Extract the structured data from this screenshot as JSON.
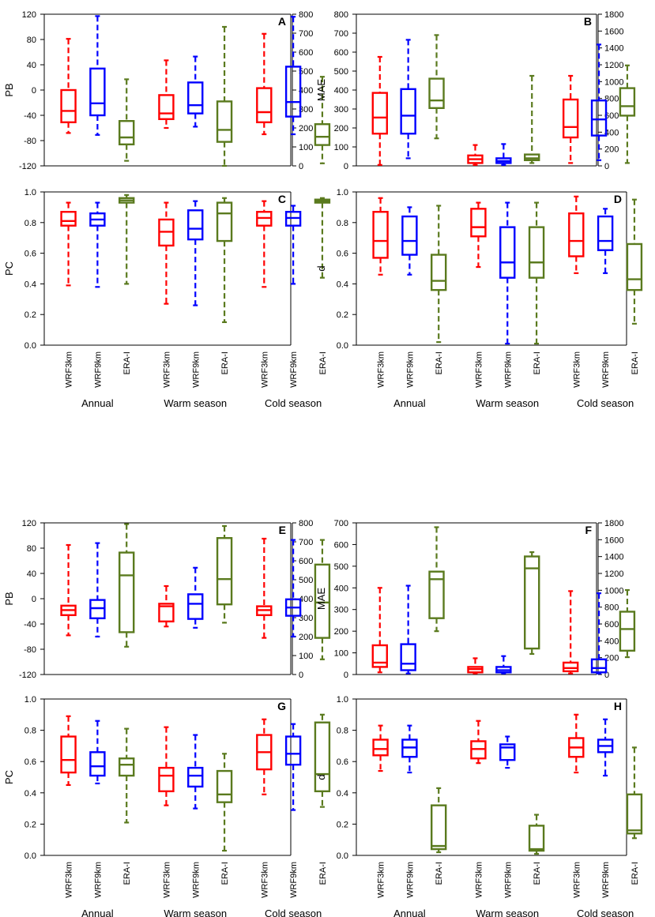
{
  "colors": {
    "WRF3km": "#ff0000",
    "WRF9km": "#0000ff",
    "ERA-I": "#5a7a1e"
  },
  "chart_data": [
    {
      "id": "A",
      "type": "box",
      "ylabel": "PB",
      "ylim": [
        -120,
        120
      ],
      "yticks": [
        "120",
        "80",
        "40",
        "0",
        "-40",
        "-80",
        "-120"
      ],
      "right_ylim": [
        0,
        800
      ],
      "right_yticks": [
        "800",
        "700",
        "600",
        "500",
        "400",
        "300",
        "200",
        "100",
        "0"
      ],
      "groups": [
        {
          "label": "Annual",
          "boxes": [
            {
              "name": "WRF3km",
              "min": -68,
              "q1": -51,
              "median": -33,
              "q3": 0,
              "max": 81
            },
            {
              "name": "WRF9km",
              "min": -71,
              "q1": -40,
              "median": -21,
              "q3": 34,
              "max": 117
            },
            {
              "name": "ERA-I",
              "min": -112,
              "q1": -86,
              "median": -75,
              "q3": -49,
              "max": 17
            }
          ]
        },
        {
          "label": "Warm season",
          "boxes": [
            {
              "name": "WRF3km",
              "min": -60,
              "q1": -46,
              "median": -37,
              "q3": -8,
              "max": 47
            },
            {
              "name": "WRF9km",
              "min": -58,
              "q1": -37,
              "median": -24,
              "q3": 12,
              "max": 53
            },
            {
              "name": "ERA-I",
              "min": -120,
              "q1": -82,
              "median": -63,
              "q3": -18,
              "max": 100
            }
          ]
        },
        {
          "label": "Cold season",
          "boxes": [
            {
              "name": "WRF3km",
              "min": -70,
              "q1": -51,
              "median": -35,
              "q3": 3,
              "max": 89
            },
            {
              "name": "WRF9km",
              "min": -70,
              "q1": -42,
              "median": -19,
              "q3": 37,
              "max": 116
            },
            {
              "name": "ERA-I",
              "min": -116,
              "q1": -87,
              "median": -74,
              "q3": -54,
              "max": 21
            }
          ]
        }
      ]
    },
    {
      "id": "B",
      "type": "box",
      "ylabel": "MAE",
      "ylim": [
        0,
        800
      ],
      "yticks": [
        "800",
        "700",
        "600",
        "500",
        "400",
        "300",
        "200",
        "100",
        "0"
      ],
      "right_ylim": [
        0,
        1800
      ],
      "right_yticks": [
        "1800",
        "1600",
        "1400",
        "1200",
        "1000",
        "800",
        "600",
        "400",
        "200",
        "0"
      ],
      "groups": [
        {
          "label": "Annual",
          "boxes": [
            {
              "name": "WRF3km",
              "min": 5,
              "q1": 170,
              "median": 255,
              "q3": 385,
              "max": 575
            },
            {
              "name": "WRF9km",
              "min": 40,
              "q1": 170,
              "median": 265,
              "q3": 405,
              "max": 665
            },
            {
              "name": "ERA-I",
              "min": 145,
              "q1": 305,
              "median": 345,
              "q3": 460,
              "max": 690
            }
          ]
        },
        {
          "label": "Warm season",
          "boxes": [
            {
              "name": "WRF3km",
              "min": 5,
              "q1": 15,
              "median": 35,
              "q3": 55,
              "max": 110
            },
            {
              "name": "WRF9km",
              "min": 5,
              "q1": 15,
              "median": 25,
              "q3": 40,
              "max": 115
            },
            {
              "name": "ERA-I",
              "min": 15,
              "q1": 30,
              "median": 40,
              "q3": 60,
              "max": 475
            }
          ]
        },
        {
          "label": "Cold season",
          "boxes": [
            {
              "name": "WRF3km",
              "min": 15,
              "q1": 150,
              "median": 205,
              "q3": 350,
              "max": 475
            },
            {
              "name": "WRF9km",
              "min": 30,
              "q1": 160,
              "median": 245,
              "q3": 345,
              "max": 640
            },
            {
              "name": "ERA-I",
              "min": 15,
              "q1": 265,
              "median": 315,
              "q3": 410,
              "max": 530
            }
          ]
        }
      ]
    },
    {
      "id": "C",
      "type": "box",
      "ylabel": "PC",
      "ylim": [
        0,
        1
      ],
      "yticks": [
        "1.0",
        "0.8",
        "0.6",
        "0.4",
        "0.2",
        "0.0"
      ],
      "groups": [
        {
          "label": "Annual",
          "boxes": [
            {
              "name": "WRF3km",
              "min": 0.39,
              "q1": 0.78,
              "median": 0.81,
              "q3": 0.87,
              "max": 0.93
            },
            {
              "name": "WRF9km",
              "min": 0.38,
              "q1": 0.78,
              "median": 0.82,
              "q3": 0.86,
              "max": 0.93
            },
            {
              "name": "ERA-I",
              "min": 0.4,
              "q1": 0.93,
              "median": 0.945,
              "q3": 0.96,
              "max": 0.98
            }
          ]
        },
        {
          "label": "Warm season",
          "boxes": [
            {
              "name": "WRF3km",
              "min": 0.27,
              "q1": 0.65,
              "median": 0.74,
              "q3": 0.82,
              "max": 0.93
            },
            {
              "name": "WRF9km",
              "min": 0.26,
              "q1": 0.69,
              "median": 0.76,
              "q3": 0.88,
              "max": 0.94
            },
            {
              "name": "ERA-I",
              "min": 0.15,
              "q1": 0.68,
              "median": 0.86,
              "q3": 0.93,
              "max": 0.96
            }
          ]
        },
        {
          "label": "Cold season",
          "boxes": [
            {
              "name": "WRF3km",
              "min": 0.38,
              "q1": 0.78,
              "median": 0.83,
              "q3": 0.87,
              "max": 0.94
            },
            {
              "name": "WRF9km",
              "min": 0.4,
              "q1": 0.78,
              "median": 0.83,
              "q3": 0.87,
              "max": 0.91
            },
            {
              "name": "ERA-I",
              "min": 0.44,
              "q1": 0.93,
              "median": 0.94,
              "q3": 0.95,
              "max": 0.96
            }
          ]
        }
      ]
    },
    {
      "id": "D",
      "type": "box",
      "ylabel": "d",
      "ylim": [
        0,
        1
      ],
      "yticks": [
        "1.0",
        "0.8",
        "0.6",
        "0.4",
        "0.2",
        "0.0"
      ],
      "groups": [
        {
          "label": "Annual",
          "boxes": [
            {
              "name": "WRF3km",
              "min": 0.46,
              "q1": 0.57,
              "median": 0.68,
              "q3": 0.87,
              "max": 0.96
            },
            {
              "name": "WRF9km",
              "min": 0.46,
              "q1": 0.59,
              "median": 0.68,
              "q3": 0.84,
              "max": 0.9
            },
            {
              "name": "ERA-I",
              "min": 0.02,
              "q1": 0.36,
              "median": 0.42,
              "q3": 0.59,
              "max": 0.91
            }
          ]
        },
        {
          "label": "Warm season",
          "boxes": [
            {
              "name": "WRF3km",
              "min": 0.51,
              "q1": 0.71,
              "median": 0.77,
              "q3": 0.89,
              "max": 0.93
            },
            {
              "name": "WRF9km",
              "min": 0.01,
              "q1": 0.44,
              "median": 0.54,
              "q3": 0.77,
              "max": 0.93
            },
            {
              "name": "ERA-I",
              "min": 0.01,
              "q1": 0.44,
              "median": 0.54,
              "q3": 0.77,
              "max": 0.93
            }
          ]
        },
        {
          "label": "Cold season",
          "boxes": [
            {
              "name": "WRF3km",
              "min": 0.47,
              "q1": 0.58,
              "median": 0.68,
              "q3": 0.86,
              "max": 0.97
            },
            {
              "name": "WRF9km",
              "min": 0.47,
              "q1": 0.62,
              "median": 0.68,
              "q3": 0.84,
              "max": 0.89
            },
            {
              "name": "ERA-I",
              "min": 0.14,
              "q1": 0.36,
              "median": 0.43,
              "q3": 0.66,
              "max": 0.95
            }
          ]
        }
      ]
    },
    {
      "id": "E",
      "type": "box",
      "ylabel": "PB",
      "ylim": [
        -120,
        120
      ],
      "yticks": [
        "120",
        "80",
        "40",
        "0",
        "-40",
        "-80",
        "-120"
      ],
      "right_ylim": [
        0,
        800
      ],
      "right_yticks": [
        "800",
        "700",
        "600",
        "500",
        "400",
        "300",
        "200",
        "100",
        "0"
      ],
      "groups": [
        {
          "label": "Annual",
          "boxes": [
            {
              "name": "WRF3km",
              "min": -58,
              "q1": -26,
              "median": -18,
              "q3": -11,
              "max": 85
            },
            {
              "name": "WRF9km",
              "min": -60,
              "q1": -31,
              "median": -15,
              "q3": -2,
              "max": 88
            },
            {
              "name": "ERA-I",
              "min": -76,
              "q1": -53,
              "median": 37,
              "q3": 73,
              "max": 118
            }
          ]
        },
        {
          "label": "Warm season",
          "boxes": [
            {
              "name": "WRF3km",
              "min": -44,
              "q1": -36,
              "median": -12,
              "q3": -8,
              "max": 20
            },
            {
              "name": "WRF9km",
              "min": -46,
              "q1": -32,
              "median": -8,
              "q3": 7,
              "max": 49
            },
            {
              "name": "ERA-I",
              "min": -38,
              "q1": -9,
              "median": 31,
              "q3": 96,
              "max": 115
            }
          ]
        },
        {
          "label": "Cold season",
          "boxes": [
            {
              "name": "WRF3km",
              "min": -62,
              "q1": -26,
              "median": -18,
              "q3": -12,
              "max": 95
            },
            {
              "name": "WRF9km",
              "min": -60,
              "q1": -27,
              "median": -14,
              "q3": -1,
              "max": 93
            },
            {
              "name": "ERA-I",
              "min": -96,
              "q1": -62,
              "median": -6,
              "q3": 54,
              "max": 93
            }
          ]
        }
      ]
    },
    {
      "id": "F",
      "type": "box",
      "ylabel": "MAE",
      "ylim": [
        0,
        700
      ],
      "yticks": [
        "700",
        "600",
        "500",
        "400",
        "300",
        "200",
        "100",
        "0"
      ],
      "right_ylim": [
        0,
        1800
      ],
      "right_yticks": [
        "1800",
        "1600",
        "1400",
        "1200",
        "1000",
        "800",
        "600",
        "400",
        "200",
        "0"
      ],
      "groups": [
        {
          "label": "Annual",
          "boxes": [
            {
              "name": "WRF3km",
              "min": 10,
              "q1": 35,
              "median": 55,
              "q3": 135,
              "max": 400
            },
            {
              "name": "WRF9km",
              "min": 5,
              "q1": 20,
              "median": 50,
              "q3": 140,
              "max": 410
            },
            {
              "name": "ERA-I",
              "min": 200,
              "q1": 260,
              "median": 440,
              "q3": 475,
              "max": 680
            }
          ]
        },
        {
          "label": "Warm season",
          "boxes": [
            {
              "name": "WRF3km",
              "min": 5,
              "q1": 10,
              "median": 25,
              "q3": 35,
              "max": 75
            },
            {
              "name": "WRF9km",
              "min": 5,
              "q1": 10,
              "median": 20,
              "q3": 35,
              "max": 85
            },
            {
              "name": "ERA-I",
              "min": 95,
              "q1": 120,
              "median": 490,
              "q3": 545,
              "max": 565
            }
          ]
        },
        {
          "label": "Cold season",
          "boxes": [
            {
              "name": "WRF3km",
              "min": 5,
              "q1": 15,
              "median": 30,
              "q3": 55,
              "max": 385
            },
            {
              "name": "WRF9km",
              "min": 5,
              "q1": 10,
              "median": 30,
              "q3": 70,
              "max": 375
            },
            {
              "name": "ERA-I",
              "min": 80,
              "q1": 110,
              "median": 210,
              "q3": 290,
              "max": 390
            }
          ]
        }
      ]
    },
    {
      "id": "G",
      "type": "box",
      "ylabel": "PC",
      "ylim": [
        0,
        1
      ],
      "yticks": [
        "1.0",
        "0.8",
        "0.6",
        "0.4",
        "0.2",
        "0.0"
      ],
      "groups": [
        {
          "label": "Annual",
          "boxes": [
            {
              "name": "WRF3km",
              "min": 0.45,
              "q1": 0.53,
              "median": 0.61,
              "q3": 0.76,
              "max": 0.89
            },
            {
              "name": "WRF9km",
              "min": 0.46,
              "q1": 0.51,
              "median": 0.57,
              "q3": 0.66,
              "max": 0.86
            },
            {
              "name": "ERA-I",
              "min": 0.21,
              "q1": 0.51,
              "median": 0.58,
              "q3": 0.62,
              "max": 0.81
            }
          ]
        },
        {
          "label": "Warm season",
          "boxes": [
            {
              "name": "WRF3km",
              "min": 0.32,
              "q1": 0.41,
              "median": 0.51,
              "q3": 0.56,
              "max": 0.82
            },
            {
              "name": "WRF9km",
              "min": 0.3,
              "q1": 0.44,
              "median": 0.51,
              "q3": 0.56,
              "max": 0.77
            },
            {
              "name": "ERA-I",
              "min": 0.03,
              "q1": 0.34,
              "median": 0.39,
              "q3": 0.54,
              "max": 0.65
            }
          ]
        },
        {
          "label": "Cold season",
          "boxes": [
            {
              "name": "WRF3km",
              "min": 0.39,
              "q1": 0.55,
              "median": 0.66,
              "q3": 0.77,
              "max": 0.87
            },
            {
              "name": "WRF9km",
              "min": 0.29,
              "q1": 0.58,
              "median": 0.65,
              "q3": 0.76,
              "max": 0.84
            },
            {
              "name": "ERA-I",
              "min": 0.31,
              "q1": 0.41,
              "median": 0.52,
              "q3": 0.85,
              "max": 0.9
            }
          ]
        }
      ]
    },
    {
      "id": "H",
      "type": "box",
      "ylabel": "d",
      "ylim": [
        0,
        1
      ],
      "yticks": [
        "1.0",
        "0.8",
        "0.6",
        "0.4",
        "0.2",
        "0.0"
      ],
      "groups": [
        {
          "label": "Annual",
          "boxes": [
            {
              "name": "WRF3km",
              "min": 0.54,
              "q1": 0.64,
              "median": 0.68,
              "q3": 0.74,
              "max": 0.83
            },
            {
              "name": "WRF9km",
              "min": 0.53,
              "q1": 0.63,
              "median": 0.69,
              "q3": 0.74,
              "max": 0.83
            },
            {
              "name": "ERA-I",
              "min": 0.02,
              "q1": 0.04,
              "median": 0.06,
              "q3": 0.32,
              "max": 0.43
            }
          ]
        },
        {
          "label": "Warm season",
          "boxes": [
            {
              "name": "WRF3km",
              "min": 0.59,
              "q1": 0.62,
              "median": 0.68,
              "q3": 0.73,
              "max": 0.86
            },
            {
              "name": "WRF9km",
              "min": 0.56,
              "q1": 0.61,
              "median": 0.69,
              "q3": 0.71,
              "max": 0.76
            },
            {
              "name": "ERA-I",
              "min": 0.01,
              "q1": 0.03,
              "median": 0.04,
              "q3": 0.19,
              "max": 0.26
            }
          ]
        },
        {
          "label": "Cold season",
          "boxes": [
            {
              "name": "WRF3km",
              "min": 0.53,
              "q1": 0.63,
              "median": 0.69,
              "q3": 0.75,
              "max": 0.9
            },
            {
              "name": "WRF9km",
              "min": 0.51,
              "q1": 0.66,
              "median": 0.7,
              "q3": 0.74,
              "max": 0.87
            },
            {
              "name": "ERA-I",
              "min": 0.11,
              "q1": 0.14,
              "median": 0.16,
              "q3": 0.39,
              "max": 0.69
            }
          ]
        }
      ]
    }
  ]
}
